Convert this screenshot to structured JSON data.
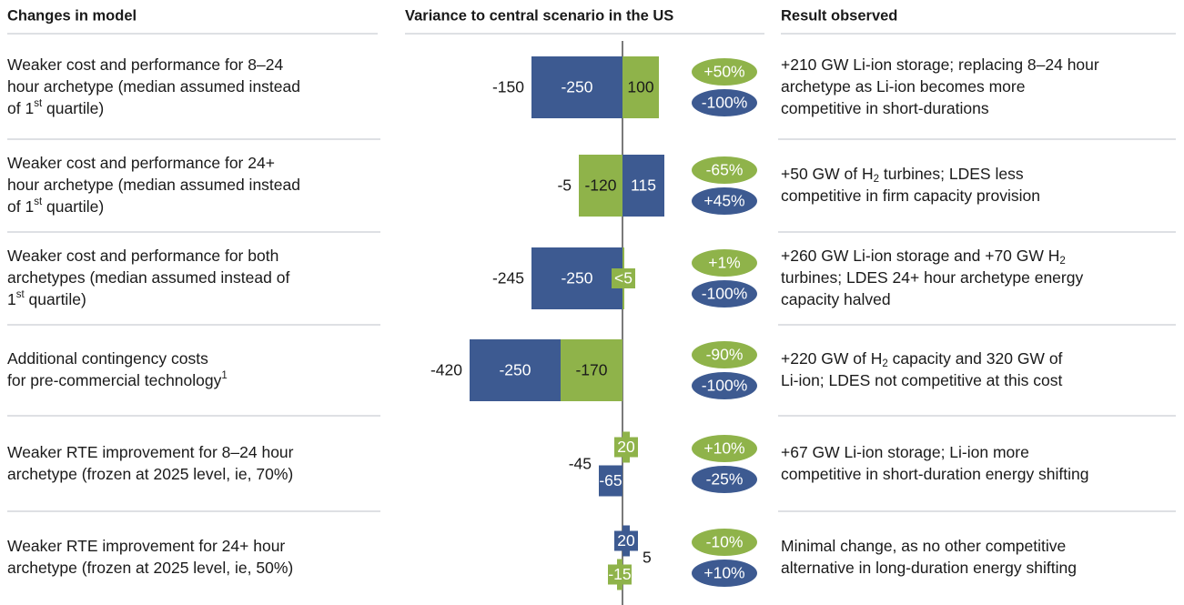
{
  "headers": {
    "changes": "Changes in model",
    "result": "Result observed"
  },
  "rows": [
    {
      "change": [
        [
          "Weaker cost and performance for 8–24"
        ],
        [
          "hour archetype (median assumed instead"
        ],
        [
          "of 1",
          {
            "sup": "st"
          },
          " quartile)"
        ]
      ],
      "pct_green": "+50%",
      "pct_blue": "-100%",
      "result": [
        [
          "+210 GW Li-ion storage; replacing 8–24 hour"
        ],
        [
          "archetype as Li-ion becomes more"
        ],
        [
          "competitive in short-durations"
        ]
      ]
    },
    {
      "change": [
        [
          "Weaker cost and performance for 24+"
        ],
        [
          "hour archetype (median assumed instead"
        ],
        [
          "of 1",
          {
            "sup": "st"
          },
          " quartile)"
        ]
      ],
      "pct_green": "-65%",
      "pct_blue": "+45%",
      "result": [
        [
          "+50 GW of H",
          {
            "sub": "2"
          },
          " turbines; LDES less"
        ],
        [
          "competitive in firm capacity provision"
        ]
      ]
    },
    {
      "change": [
        [
          "Weaker cost and performance for both"
        ],
        [
          "archetypes (median assumed instead of"
        ],
        [
          "1",
          {
            "sup": "st"
          },
          " quartile)"
        ]
      ],
      "pct_green": "+1%",
      "pct_blue": "-100%",
      "result": [
        [
          "+260 GW Li-ion storage and +70 GW H",
          {
            "sub": "2"
          }
        ],
        [
          "turbines; LDES 24+ hour archetype energy"
        ],
        [
          "capacity halved"
        ]
      ]
    },
    {
      "change": [
        [
          "Additional contingency costs"
        ],
        [
          "for pre-commercial technology",
          {
            "sup": "1"
          }
        ]
      ],
      "pct_green": "-90%",
      "pct_blue": "-100%",
      "result": [
        [
          "+220 GW of H",
          {
            "sub": "2"
          },
          " capacity and 320 GW of"
        ],
        [
          "Li-ion; LDES not competitive at this cost"
        ]
      ]
    },
    {
      "change": [
        [
          "Weaker RTE improvement for 8–24 hour"
        ],
        [
          "archetype (frozen at 2025 level, ie, 70%)"
        ]
      ],
      "pct_green": "+10%",
      "pct_blue": "-25%",
      "result": [
        [
          "+67 GW Li-ion storage; Li-ion more"
        ],
        [
          "competitive in short-duration energy shifting"
        ]
      ]
    },
    {
      "change": [
        [
          "Weaker RTE improvement for 24+ hour"
        ],
        [
          "archetype (frozen at 2025 level, ie, 50%)"
        ]
      ],
      "pct_green": "-10%",
      "pct_blue": "+10%",
      "result": [
        [
          "Minimal change, as no other competitive"
        ],
        [
          "alternative in long-duration energy shifting"
        ]
      ]
    }
  ],
  "chart_data": {
    "type": "bar",
    "title": "Variance to central scenario in the US",
    "rows": [
      {
        "stacked": true,
        "total": -150,
        "segments": [
          {
            "value": -250,
            "color": "#3d5a91"
          },
          {
            "value": 100,
            "color": "#8fb34a"
          }
        ]
      },
      {
        "stacked": true,
        "total": -5,
        "segments": [
          {
            "value": -120,
            "color": "#8fb34a"
          },
          {
            "value": 115,
            "color": "#3d5a91"
          }
        ]
      },
      {
        "stacked": true,
        "total": -245,
        "segments": [
          {
            "value": -250,
            "color": "#3d5a91"
          },
          {
            "value": 5,
            "value_label": "<5",
            "color": "#8fb34a"
          }
        ]
      },
      {
        "stacked": true,
        "total": -420,
        "segments": [
          {
            "value": -170,
            "color": "#8fb34a"
          },
          {
            "value": -250,
            "color": "#3d5a91"
          }
        ]
      },
      {
        "stacked": false,
        "total": -45,
        "segments": [
          {
            "value": 20,
            "color": "#8fb34a"
          },
          {
            "value": -65,
            "color": "#3d5a91"
          }
        ]
      },
      {
        "stacked": false,
        "total": 5,
        "segments": [
          {
            "value": 20,
            "color": "#3d5a91"
          },
          {
            "value": -15,
            "color": "#8fb34a"
          }
        ]
      }
    ],
    "oval_colors": {
      "green": "#8fb34a",
      "blue": "#3d5a91"
    }
  }
}
